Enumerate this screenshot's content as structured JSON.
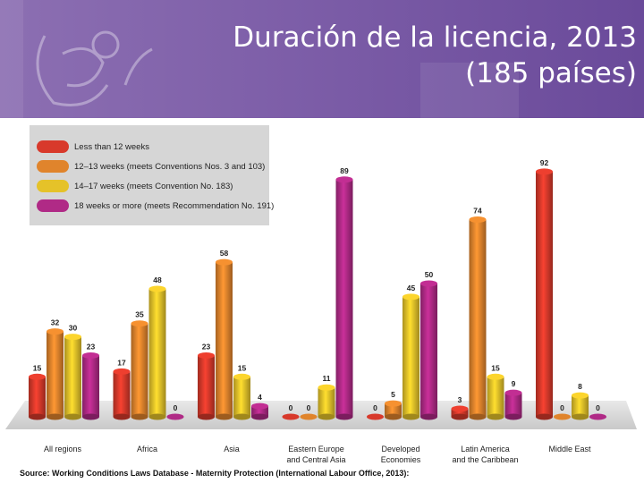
{
  "slide": {
    "title_line1": "Duración de la licencia, 2013",
    "title_line2": "(185 países)",
    "source": "Source: Working Conditions Laws Database - Maternity Protection (International Labour Office, 2013):"
  },
  "colors": {
    "series": [
      "#d8392b",
      "#e0842c",
      "#e5c229",
      "#b02a86"
    ],
    "banner": "#7d5ea8"
  },
  "chart_data": {
    "type": "bar",
    "title": "Duración de la licencia, 2013 (185 países)",
    "categories": [
      [
        "All regions"
      ],
      [
        "Africa"
      ],
      [
        "Asia"
      ],
      [
        "Eastern Europe",
        "and Central Asia"
      ],
      [
        "Developed",
        "Economies"
      ],
      [
        "Latin America",
        "and the Caribbean"
      ],
      [
        "Middle East"
      ]
    ],
    "series": [
      {
        "name": "Less than 12 weeks",
        "values": [
          15,
          17,
          23,
          0,
          0,
          3,
          92
        ]
      },
      {
        "name": "12–13 weeks (meets Conventions Nos. 3 and 103)",
        "values": [
          32,
          35,
          58,
          0,
          5,
          74,
          0
        ]
      },
      {
        "name": "14–17 weeks (meets Convention No. 183)",
        "values": [
          30,
          48,
          15,
          11,
          45,
          15,
          8
        ]
      },
      {
        "name": "18 weeks or more (meets Recommendation No. 191)",
        "values": [
          23,
          0,
          4,
          89,
          50,
          9,
          0
        ]
      }
    ],
    "ylim": [
      0,
      100
    ],
    "legend": "top-left",
    "grid": false
  }
}
